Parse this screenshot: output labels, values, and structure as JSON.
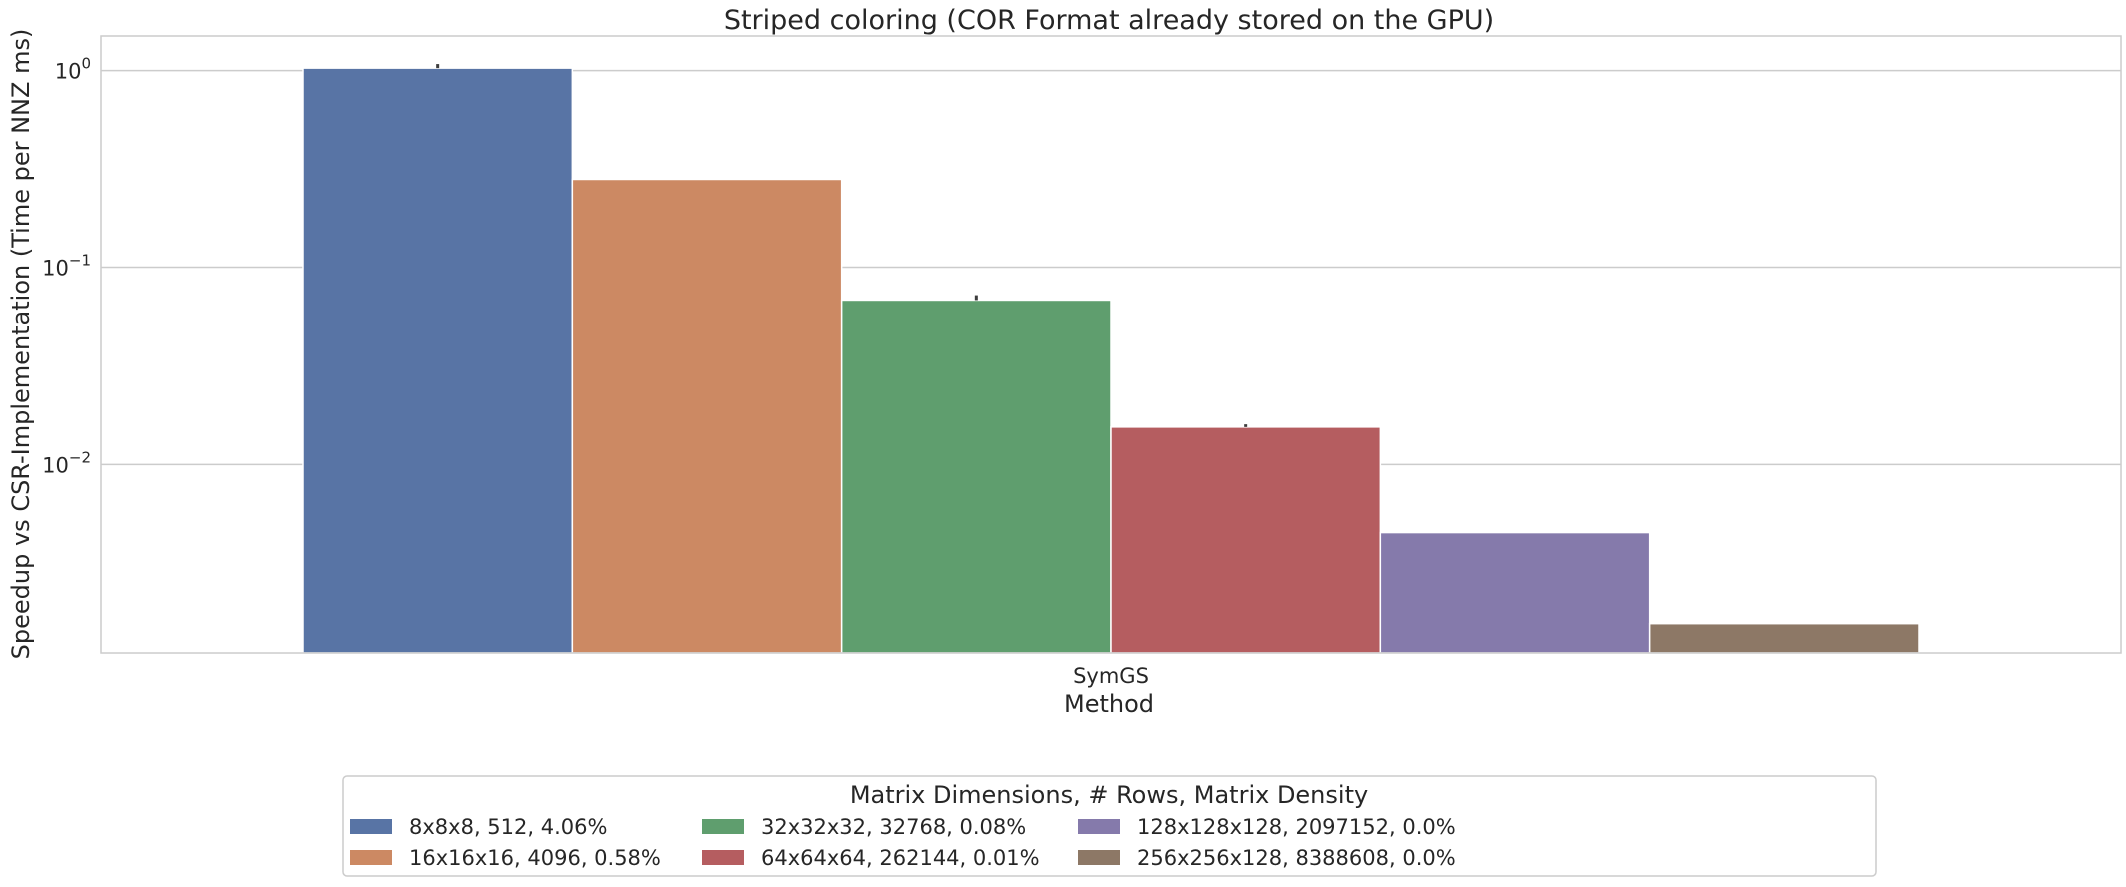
{
  "chart_data": {
    "type": "bar",
    "title": "Striped coloring (COR Format already stored on the GPU)",
    "xlabel": "Method",
    "ylabel": "Speedup vs CSR-Implementation (Time per NNZ ms)",
    "yscale": "log",
    "ylim": [
      0.0011,
      1.5
    ],
    "yticks": [
      {
        "value": 1,
        "base": "10",
        "exp": "0"
      },
      {
        "value": 0.1,
        "base": "10",
        "exp": "−1"
      },
      {
        "value": 0.01,
        "base": "10",
        "exp": "−2"
      }
    ],
    "categories": [
      "SymGS"
    ],
    "grid": true,
    "legend_placement": "bottom-center",
    "legend_title": "Matrix Dimensions, # Rows, Matrix Density",
    "series": [
      {
        "name": "8x8x8, 512, 4.06%",
        "color": "#5874a5",
        "values": [
          1.03
        ],
        "error": [
          1.08
        ]
      },
      {
        "name": "16x16x16, 4096, 0.58%",
        "color": "#cc8963",
        "values": [
          0.28
        ],
        "error": null
      },
      {
        "name": "32x32x32, 32768, 0.08%",
        "color": "#5f9e6e",
        "values": [
          0.068
        ],
        "error": [
          0.072
        ]
      },
      {
        "name": "64x64x64, 262144, 0.01%",
        "color": "#b55d60",
        "values": [
          0.0155
        ],
        "error": [
          0.016
        ]
      },
      {
        "name": "128x128x128, 2097152, 0.0%",
        "color": "#857aab",
        "values": [
          0.0045
        ],
        "error": null
      },
      {
        "name": "256x256x128, 8388608, 0.0%",
        "color": "#8d7866",
        "values": [
          0.00155
        ],
        "error": null
      }
    ]
  }
}
